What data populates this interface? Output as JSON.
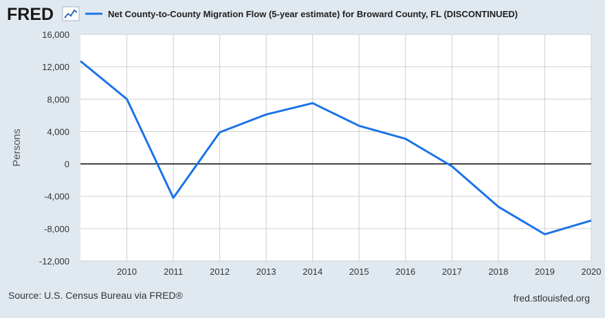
{
  "header": {
    "logo_text": "FRED",
    "logo_icon": "trend-chart-icon"
  },
  "colors": {
    "background": "#e1e9f0",
    "plot_background": "#ffffff",
    "series_line": "#1a73e8",
    "gridline": "#cfcfcf",
    "zero_line": "#000000"
  },
  "chart_data": {
    "type": "line",
    "title": "",
    "xlabel": "",
    "ylabel": "Persons",
    "x": [
      2009,
      2010,
      2011,
      2012,
      2013,
      2014,
      2015,
      2016,
      2017,
      2018,
      2019,
      2020
    ],
    "x_ticks": [
      "2010",
      "2011",
      "2012",
      "2013",
      "2014",
      "2015",
      "2016",
      "2017",
      "2018",
      "2019",
      "2020"
    ],
    "series": [
      {
        "name": "Net County-to-County Migration Flow (5-year estimate) for Broward County, FL (DISCONTINUED)",
        "values": [
          12700,
          8000,
          -4200,
          3900,
          6100,
          7500,
          4700,
          3100,
          -300,
          -5300,
          -8700,
          -7000
        ]
      }
    ],
    "y_ticks": [
      "16,000",
      "12,000",
      "8,000",
      "4,000",
      "0",
      "-4,000",
      "-8,000",
      "-12,000"
    ],
    "y_tick_values": [
      16000,
      12000,
      8000,
      4000,
      0,
      -4000,
      -8000,
      -12000
    ],
    "xlim": [
      2009,
      2020
    ],
    "ylim": [
      -12000,
      16000
    ],
    "grid": true,
    "legend_position": "top"
  },
  "footer": {
    "source": "Source: U.S. Census Bureau via FRED®",
    "site": "fred.stlouisfed.org"
  }
}
